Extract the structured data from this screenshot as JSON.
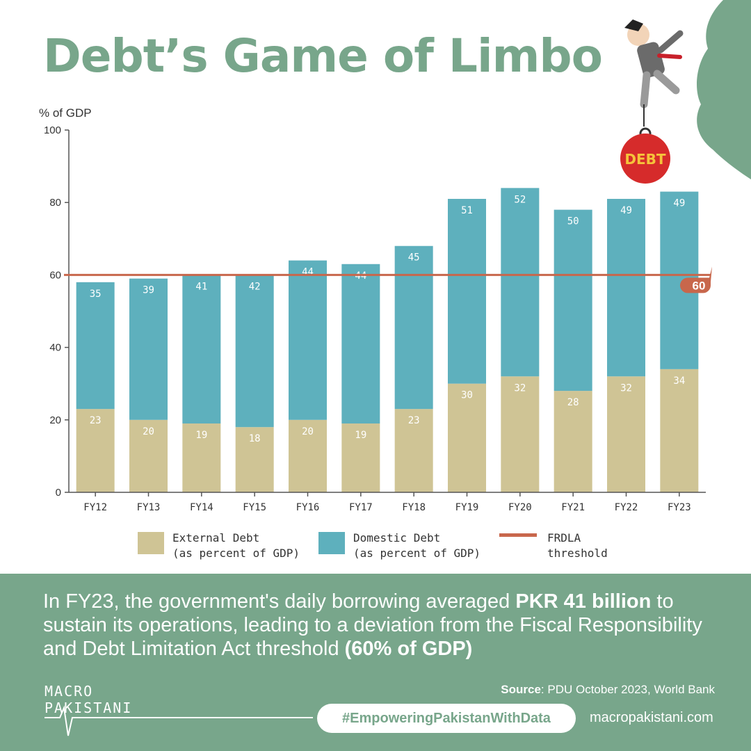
{
  "title": "Debt’s Game of Limbo",
  "chart_data": {
    "type": "bar",
    "stacked": true,
    "ylabel": "% of GDP",
    "ylim": [
      0,
      100
    ],
    "yticks": [
      0,
      20,
      40,
      60,
      80,
      100
    ],
    "categories": [
      "FY12",
      "FY13",
      "FY14",
      "FY15",
      "FY16",
      "FY17",
      "FY18",
      "FY19",
      "FY20",
      "FY21",
      "FY22",
      "FY23"
    ],
    "series": [
      {
        "name": "External Debt",
        "name_sub": "(as percent of GDP)",
        "color": "#cfc495",
        "values": [
          23,
          20,
          19,
          18,
          20,
          19,
          23,
          30,
          32,
          28,
          32,
          34
        ]
      },
      {
        "name": "Domestic Debt",
        "name_sub": "(as percent of GDP)",
        "color": "#5eb0bd",
        "values": [
          35,
          39,
          41,
          42,
          44,
          44,
          45,
          51,
          52,
          50,
          49,
          49
        ]
      }
    ],
    "threshold": {
      "name": "FRDLA",
      "name_sub": "threshold",
      "value": 60,
      "label": "60",
      "color": "#c8674c"
    },
    "grid": false,
    "legend": "bottom"
  },
  "illustration": {
    "weight_label": "DEBT"
  },
  "footer": {
    "headline_pre": "In FY23, the government's daily borrowing averaged ",
    "headline_bold1": "PKR 41 billion",
    "headline_mid": " to sustain its operations, leading to a deviation from the Fiscal Responsibility and Debt Limitation Act threshold ",
    "headline_bold2": "(60% of GDP)",
    "source_label": "Source",
    "source_text": ": PDU October 2023, World Bank",
    "logo_line1": "MACRO",
    "logo_line2": "PAKISTANI",
    "hashtag": "#EmpoweringPakistanWithData",
    "website": "macropakistani.com"
  },
  "colors": {
    "accent": "#78a68b",
    "axis": "#555555"
  }
}
